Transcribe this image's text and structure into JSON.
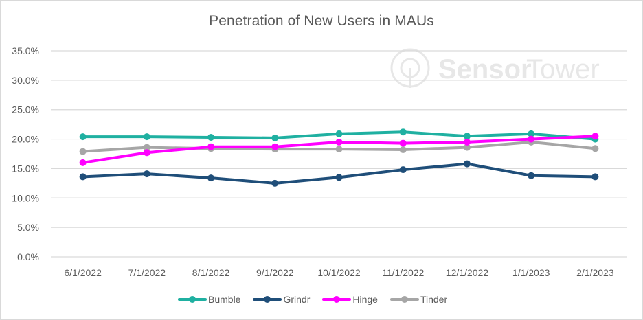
{
  "chart_data": {
    "type": "line",
    "title": "Penetration of New Users in MAUs",
    "xlabel": "",
    "ylabel": "",
    "categories": [
      "6/1/2022",
      "7/1/2022",
      "8/1/2022",
      "9/1/2022",
      "10/1/2022",
      "11/1/2022",
      "12/1/2022",
      "1/1/2023",
      "2/1/2023"
    ],
    "y_ticks": [
      "0.0%",
      "5.0%",
      "10.0%",
      "15.0%",
      "20.0%",
      "25.0%",
      "30.0%",
      "35.0%"
    ],
    "ylim": [
      0,
      35
    ],
    "grid": true,
    "legend_position": "bottom",
    "series": [
      {
        "name": "Bumble",
        "color": "#1fb0a1",
        "values": [
          20.4,
          20.4,
          20.3,
          20.2,
          20.9,
          21.2,
          20.5,
          20.9,
          20.0
        ]
      },
      {
        "name": "Grindr",
        "color": "#1f4e79",
        "values": [
          13.6,
          14.1,
          13.4,
          12.5,
          13.5,
          14.8,
          15.8,
          13.8,
          13.6
        ]
      },
      {
        "name": "Hinge",
        "color": "#ff00ff",
        "values": [
          16.0,
          17.7,
          18.7,
          18.7,
          19.5,
          19.3,
          19.5,
          20.0,
          20.5
        ]
      },
      {
        "name": "Tinder",
        "color": "#a6a6a6",
        "values": [
          17.9,
          18.6,
          18.4,
          18.3,
          18.3,
          18.2,
          18.6,
          19.5,
          18.4
        ]
      }
    ]
  },
  "watermark": {
    "brand_bold": "Sensor",
    "brand_light": "Tower"
  },
  "legend": {
    "items": [
      {
        "label": "Bumble",
        "color": "#1fb0a1"
      },
      {
        "label": "Grindr",
        "color": "#1f4e79"
      },
      {
        "label": "Hinge",
        "color": "#ff00ff"
      },
      {
        "label": "Tinder",
        "color": "#a6a6a6"
      }
    ]
  }
}
